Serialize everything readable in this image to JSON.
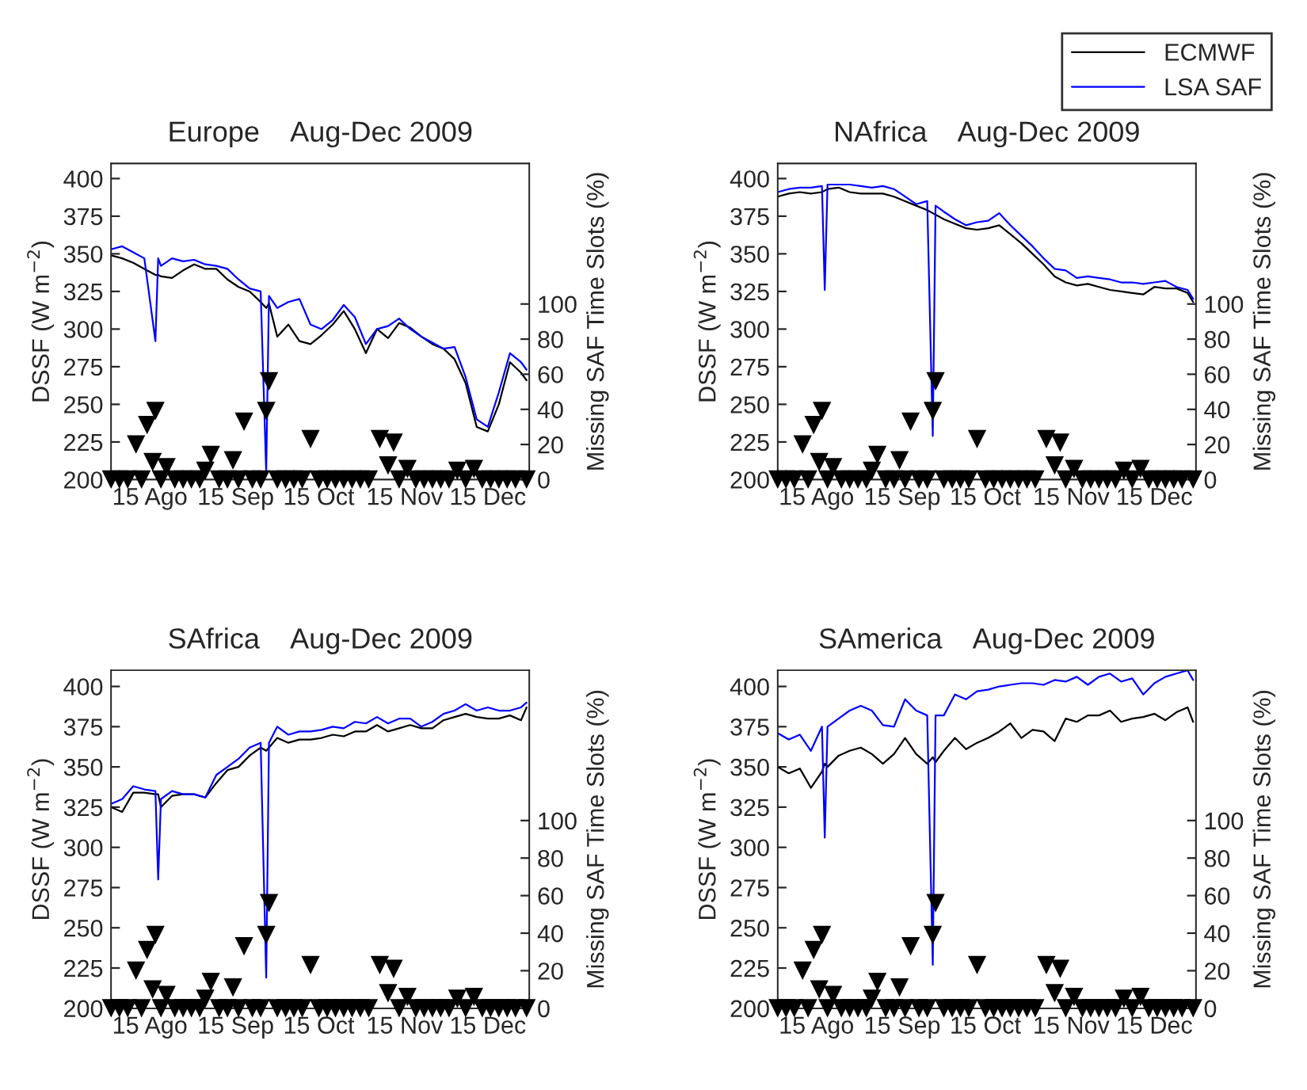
{
  "chart_data": [
    {
      "type": "line",
      "title": "Europe    Aug-Dec 2009",
      "ylabel": "DSSF (W m$^{−2}$)",
      "y2label": "Missing SAF Time Slots (%)",
      "grid": false,
      "xlim": [
        "2009-08-01",
        "2009-12-30"
      ],
      "xticks": [
        {
          "value": "2009-08-15",
          "label": "15 Ago"
        },
        {
          "value": "2009-09-15",
          "label": "15 Sep"
        },
        {
          "value": "2009-10-15",
          "label": "15 Oct"
        },
        {
          "value": "2009-11-15",
          "label": "15 Nov"
        },
        {
          "value": "2009-12-15",
          "label": "15 Dec"
        }
      ],
      "ylim": [
        200,
        410
      ],
      "yticks": [
        200,
        225,
        250,
        275,
        300,
        325,
        350,
        375,
        400
      ],
      "y2lim": [
        0,
        180
      ],
      "y2ticks": [
        0,
        20,
        40,
        60,
        80,
        100
      ],
      "x": [
        "2009-08-01",
        "2009-08-05",
        "2009-08-09",
        "2009-08-13",
        "2009-08-17",
        "2009-08-18",
        "2009-08-19",
        "2009-08-23",
        "2009-08-27",
        "2009-08-31",
        "2009-09-04",
        "2009-09-08",
        "2009-09-12",
        "2009-09-16",
        "2009-09-20",
        "2009-09-24",
        "2009-09-26",
        "2009-09-27",
        "2009-09-30",
        "2009-10-04",
        "2009-10-08",
        "2009-10-12",
        "2009-10-16",
        "2009-10-20",
        "2009-10-24",
        "2009-10-28",
        "2009-11-01",
        "2009-11-05",
        "2009-11-09",
        "2009-11-13",
        "2009-11-17",
        "2009-11-21",
        "2009-11-25",
        "2009-11-29",
        "2009-12-03",
        "2009-12-07",
        "2009-12-11",
        "2009-12-15",
        "2009-12-19",
        "2009-12-23",
        "2009-12-27",
        "2009-12-29"
      ],
      "series": [
        {
          "color": "#000000",
          "values": [
            349,
            347,
            344,
            340,
            336,
            336,
            335,
            334,
            339,
            343,
            340,
            340,
            333,
            328,
            325,
            318,
            314,
            317,
            295,
            303,
            292,
            290,
            296,
            303,
            312,
            300,
            284,
            300,
            294,
            304,
            301,
            295,
            290,
            287,
            280,
            264,
            235,
            232,
            250,
            278,
            271,
            266
          ]
        },
        {
          "color": "#0000ff",
          "values": [
            353,
            355,
            351,
            347,
            292,
            347,
            342,
            347,
            345,
            346,
            343,
            342,
            340,
            333,
            327,
            325,
            205,
            322,
            314,
            318,
            320,
            303,
            300,
            306,
            316,
            308,
            290,
            300,
            302,
            307,
            300,
            295,
            291,
            287,
            288,
            268,
            240,
            235,
            258,
            284,
            278,
            273
          ]
        },
        {
          "type": "scatter",
          "axis": "y2",
          "color": "#000000",
          "marker": "triangle",
          "x": [
            "2009-08-01",
            "2009-08-04",
            "2009-08-07",
            "2009-08-10",
            "2009-08-12",
            "2009-08-14",
            "2009-08-16",
            "2009-08-17",
            "2009-08-19",
            "2009-08-21",
            "2009-08-24",
            "2009-08-27",
            "2009-08-30",
            "2009-09-02",
            "2009-09-04",
            "2009-09-06",
            "2009-09-09",
            "2009-09-12",
            "2009-09-14",
            "2009-09-16",
            "2009-09-18",
            "2009-09-21",
            "2009-09-24",
            "2009-09-26",
            "2009-09-27",
            "2009-09-30",
            "2009-10-03",
            "2009-10-06",
            "2009-10-09",
            "2009-10-12",
            "2009-10-15",
            "2009-10-18",
            "2009-10-21",
            "2009-10-24",
            "2009-10-27",
            "2009-10-30",
            "2009-11-02",
            "2009-11-06",
            "2009-11-09",
            "2009-11-11",
            "2009-11-13",
            "2009-11-16",
            "2009-11-19",
            "2009-11-22",
            "2009-11-25",
            "2009-11-28",
            "2009-12-01",
            "2009-12-04",
            "2009-12-07",
            "2009-12-10",
            "2009-12-13",
            "2009-12-16",
            "2009-12-19",
            "2009-12-22",
            "2009-12-25",
            "2009-12-29"
          ],
          "values": [
            0,
            0,
            0,
            20,
            0,
            31,
            10,
            39,
            0,
            7,
            0,
            0,
            0,
            0,
            5,
            14,
            0,
            0,
            11,
            0,
            33,
            0,
            0,
            39,
            56,
            0,
            0,
            0,
            0,
            23,
            0,
            0,
            0,
            0,
            0,
            0,
            0,
            23,
            8,
            21,
            0,
            6,
            0,
            0,
            0,
            0,
            0,
            5,
            0,
            6,
            0,
            0,
            0,
            0,
            0,
            0
          ]
        }
      ]
    },
    {
      "type": "line",
      "title": "NAfrica    Aug-Dec 2009",
      "ylabel": "DSSF (W m$^{−2}$)",
      "y2label": "Missing SAF Time Slots (%)",
      "grid": false,
      "legend": "top right",
      "xlim": [
        "2009-08-01",
        "2009-12-30"
      ],
      "xticks": [
        {
          "value": "2009-08-15",
          "label": "15 Ago"
        },
        {
          "value": "2009-09-15",
          "label": "15 Sep"
        },
        {
          "value": "2009-10-15",
          "label": "15 Oct"
        },
        {
          "value": "2009-11-15",
          "label": "15 Nov"
        },
        {
          "value": "2009-12-15",
          "label": "15 Dec"
        }
      ],
      "ylim": [
        200,
        410
      ],
      "yticks": [
        200,
        225,
        250,
        275,
        300,
        325,
        350,
        375,
        400
      ],
      "y2lim": [
        0,
        180
      ],
      "y2ticks": [
        0,
        20,
        40,
        60,
        80,
        100
      ],
      "x": [
        "2009-08-01",
        "2009-08-05",
        "2009-08-09",
        "2009-08-13",
        "2009-08-17",
        "2009-08-18",
        "2009-08-19",
        "2009-08-23",
        "2009-08-27",
        "2009-08-31",
        "2009-09-04",
        "2009-09-08",
        "2009-09-12",
        "2009-09-16",
        "2009-09-20",
        "2009-09-24",
        "2009-09-26",
        "2009-09-27",
        "2009-09-30",
        "2009-10-04",
        "2009-10-08",
        "2009-10-12",
        "2009-10-16",
        "2009-10-20",
        "2009-10-24",
        "2009-10-28",
        "2009-11-01",
        "2009-11-05",
        "2009-11-09",
        "2009-11-13",
        "2009-11-17",
        "2009-11-21",
        "2009-11-25",
        "2009-11-29",
        "2009-12-03",
        "2009-12-07",
        "2009-12-11",
        "2009-12-15",
        "2009-12-19",
        "2009-12-23",
        "2009-12-27",
        "2009-12-29"
      ],
      "series": [
        {
          "name": "ECMWF",
          "color": "#000000",
          "values": [
            388,
            390,
            391,
            390,
            391,
            392,
            393,
            394,
            391,
            390,
            390,
            390,
            388,
            385,
            382,
            379,
            377,
            376,
            373,
            370,
            367,
            366,
            367,
            369,
            363,
            357,
            350,
            343,
            335,
            331,
            329,
            330,
            328,
            326,
            325,
            324,
            323,
            328,
            327,
            327,
            324,
            318
          ]
        },
        {
          "name": "LSA SAF",
          "color": "#0000ff",
          "values": [
            391,
            393,
            394,
            394,
            395,
            326,
            396,
            396,
            396,
            395,
            394,
            395,
            393,
            388,
            383,
            385,
            229,
            382,
            378,
            373,
            369,
            371,
            372,
            377,
            369,
            362,
            355,
            347,
            340,
            339,
            334,
            335,
            334,
            333,
            331,
            331,
            330,
            331,
            332,
            328,
            326,
            320
          ]
        },
        {
          "type": "scatter",
          "axis": "y2",
          "color": "#000000",
          "marker": "triangle",
          "x": [
            "2009-08-01",
            "2009-08-04",
            "2009-08-07",
            "2009-08-10",
            "2009-08-12",
            "2009-08-14",
            "2009-08-16",
            "2009-08-17",
            "2009-08-19",
            "2009-08-21",
            "2009-08-24",
            "2009-08-27",
            "2009-08-30",
            "2009-09-02",
            "2009-09-04",
            "2009-09-06",
            "2009-09-09",
            "2009-09-12",
            "2009-09-14",
            "2009-09-16",
            "2009-09-18",
            "2009-09-21",
            "2009-09-24",
            "2009-09-26",
            "2009-09-27",
            "2009-09-30",
            "2009-10-03",
            "2009-10-06",
            "2009-10-09",
            "2009-10-12",
            "2009-10-15",
            "2009-10-18",
            "2009-10-21",
            "2009-10-24",
            "2009-10-27",
            "2009-10-30",
            "2009-11-02",
            "2009-11-06",
            "2009-11-09",
            "2009-11-11",
            "2009-11-13",
            "2009-11-16",
            "2009-11-19",
            "2009-11-22",
            "2009-11-25",
            "2009-11-28",
            "2009-12-01",
            "2009-12-04",
            "2009-12-07",
            "2009-12-10",
            "2009-12-13",
            "2009-12-16",
            "2009-12-19",
            "2009-12-22",
            "2009-12-25",
            "2009-12-29"
          ],
          "values": [
            0,
            0,
            0,
            20,
            0,
            31,
            10,
            39,
            0,
            7,
            0,
            0,
            0,
            0,
            5,
            14,
            0,
            0,
            11,
            0,
            33,
            0,
            0,
            39,
            56,
            0,
            0,
            0,
            0,
            23,
            0,
            0,
            0,
            0,
            0,
            0,
            0,
            23,
            8,
            21,
            0,
            6,
            0,
            0,
            0,
            0,
            0,
            5,
            0,
            6,
            0,
            0,
            0,
            0,
            0,
            0
          ]
        }
      ]
    },
    {
      "type": "line",
      "title": "SAfrica    Aug-Dec 2009",
      "ylabel": "DSSF (W m$^{−2}$)",
      "y2label": "Missing SAF Time Slots (%)",
      "grid": false,
      "xlim": [
        "2009-08-01",
        "2009-12-30"
      ],
      "xticks": [
        {
          "value": "2009-08-15",
          "label": "15 Ago"
        },
        {
          "value": "2009-09-15",
          "label": "15 Sep"
        },
        {
          "value": "2009-10-15",
          "label": "15 Oct"
        },
        {
          "value": "2009-11-15",
          "label": "15 Nov"
        },
        {
          "value": "2009-12-15",
          "label": "15 Dec"
        }
      ],
      "ylim": [
        200,
        410
      ],
      "yticks": [
        200,
        225,
        250,
        275,
        300,
        325,
        350,
        375,
        400
      ],
      "y2lim": [
        0,
        180
      ],
      "y2ticks": [
        0,
        20,
        40,
        60,
        80,
        100
      ],
      "x": [
        "2009-08-01",
        "2009-08-05",
        "2009-08-09",
        "2009-08-13",
        "2009-08-17",
        "2009-08-18",
        "2009-08-19",
        "2009-08-23",
        "2009-08-27",
        "2009-08-31",
        "2009-09-04",
        "2009-09-08",
        "2009-09-12",
        "2009-09-16",
        "2009-09-20",
        "2009-09-24",
        "2009-09-26",
        "2009-09-27",
        "2009-09-30",
        "2009-10-04",
        "2009-10-08",
        "2009-10-12",
        "2009-10-16",
        "2009-10-20",
        "2009-10-24",
        "2009-10-28",
        "2009-11-01",
        "2009-11-05",
        "2009-11-09",
        "2009-11-13",
        "2009-11-17",
        "2009-11-21",
        "2009-11-25",
        "2009-11-29",
        "2009-12-03",
        "2009-12-07",
        "2009-12-11",
        "2009-12-15",
        "2009-12-19",
        "2009-12-23",
        "2009-12-27",
        "2009-12-29"
      ],
      "series": [
        {
          "color": "#000000",
          "values": [
            325,
            322,
            334,
            334,
            333,
            333,
            325,
            332,
            333,
            333,
            331,
            340,
            348,
            350,
            357,
            362,
            360,
            362,
            368,
            365,
            367,
            367,
            368,
            370,
            369,
            372,
            372,
            376,
            372,
            374,
            376,
            374,
            374,
            379,
            381,
            383,
            381,
            380,
            380,
            382,
            379,
            387
          ]
        },
        {
          "color": "#0000ff",
          "values": [
            327,
            330,
            338,
            336,
            335,
            280,
            330,
            335,
            333,
            333,
            331,
            345,
            350,
            355,
            362,
            365,
            219,
            365,
            375,
            370,
            372,
            372,
            373,
            375,
            374,
            378,
            377,
            381,
            377,
            380,
            380,
            375,
            378,
            383,
            385,
            389,
            385,
            387,
            385,
            385,
            387,
            390
          ]
        },
        {
          "type": "scatter",
          "axis": "y2",
          "color": "#000000",
          "marker": "triangle",
          "x": [
            "2009-08-01",
            "2009-08-04",
            "2009-08-07",
            "2009-08-10",
            "2009-08-12",
            "2009-08-14",
            "2009-08-16",
            "2009-08-17",
            "2009-08-19",
            "2009-08-21",
            "2009-08-24",
            "2009-08-27",
            "2009-08-30",
            "2009-09-02",
            "2009-09-04",
            "2009-09-06",
            "2009-09-09",
            "2009-09-12",
            "2009-09-14",
            "2009-09-16",
            "2009-09-18",
            "2009-09-21",
            "2009-09-24",
            "2009-09-26",
            "2009-09-27",
            "2009-09-30",
            "2009-10-03",
            "2009-10-06",
            "2009-10-09",
            "2009-10-12",
            "2009-10-15",
            "2009-10-18",
            "2009-10-21",
            "2009-10-24",
            "2009-10-27",
            "2009-10-30",
            "2009-11-02",
            "2009-11-06",
            "2009-11-09",
            "2009-11-11",
            "2009-11-13",
            "2009-11-16",
            "2009-11-19",
            "2009-11-22",
            "2009-11-25",
            "2009-11-28",
            "2009-12-01",
            "2009-12-04",
            "2009-12-07",
            "2009-12-10",
            "2009-12-13",
            "2009-12-16",
            "2009-12-19",
            "2009-12-22",
            "2009-12-25",
            "2009-12-29"
          ],
          "values": [
            0,
            0,
            0,
            20,
            0,
            31,
            10,
            39,
            0,
            7,
            0,
            0,
            0,
            0,
            5,
            14,
            0,
            0,
            11,
            0,
            33,
            0,
            0,
            39,
            56,
            0,
            0,
            0,
            0,
            23,
            0,
            0,
            0,
            0,
            0,
            0,
            0,
            23,
            8,
            21,
            0,
            6,
            0,
            0,
            0,
            0,
            0,
            5,
            0,
            6,
            0,
            0,
            0,
            0,
            0,
            0
          ]
        }
      ]
    },
    {
      "type": "line",
      "title": "SAmerica    Aug-Dec 2009",
      "ylabel": "DSSF (W m$^{−2}$)",
      "y2label": "Missing SAF Time Slots (%)",
      "grid": false,
      "xlim": [
        "2009-08-01",
        "2009-12-30"
      ],
      "xticks": [
        {
          "value": "2009-08-15",
          "label": "15 Ago"
        },
        {
          "value": "2009-09-15",
          "label": "15 Sep"
        },
        {
          "value": "2009-10-15",
          "label": "15 Oct"
        },
        {
          "value": "2009-11-15",
          "label": "15 Nov"
        },
        {
          "value": "2009-12-15",
          "label": "15 Dec"
        }
      ],
      "ylim": [
        200,
        410
      ],
      "yticks": [
        200,
        225,
        250,
        275,
        300,
        325,
        350,
        375,
        400
      ],
      "y2lim": [
        0,
        180
      ],
      "y2ticks": [
        0,
        20,
        40,
        60,
        80,
        100
      ],
      "x": [
        "2009-08-01",
        "2009-08-05",
        "2009-08-09",
        "2009-08-13",
        "2009-08-17",
        "2009-08-18",
        "2009-08-19",
        "2009-08-23",
        "2009-08-27",
        "2009-08-31",
        "2009-09-04",
        "2009-09-08",
        "2009-09-12",
        "2009-09-16",
        "2009-09-20",
        "2009-09-24",
        "2009-09-26",
        "2009-09-27",
        "2009-09-30",
        "2009-10-04",
        "2009-10-08",
        "2009-10-12",
        "2009-10-16",
        "2009-10-20",
        "2009-10-24",
        "2009-10-28",
        "2009-11-01",
        "2009-11-05",
        "2009-11-09",
        "2009-11-13",
        "2009-11-17",
        "2009-11-21",
        "2009-11-25",
        "2009-11-29",
        "2009-12-03",
        "2009-12-07",
        "2009-12-11",
        "2009-12-15",
        "2009-12-19",
        "2009-12-23",
        "2009-12-27",
        "2009-12-29"
      ],
      "series": [
        {
          "color": "#000000",
          "values": [
            350,
            346,
            349,
            337,
            347,
            352,
            350,
            357,
            360,
            362,
            358,
            352,
            358,
            368,
            358,
            352,
            356,
            353,
            360,
            368,
            361,
            365,
            368,
            372,
            377,
            368,
            373,
            372,
            366,
            380,
            378,
            382,
            382,
            385,
            378,
            380,
            381,
            383,
            379,
            384,
            387,
            378
          ]
        },
        {
          "color": "#0000ff",
          "values": [
            371,
            367,
            370,
            360,
            375,
            306,
            375,
            380,
            385,
            388,
            385,
            376,
            375,
            392,
            385,
            382,
            227,
            382,
            382,
            395,
            392,
            397,
            398,
            400,
            401,
            402,
            402,
            401,
            404,
            403,
            406,
            401,
            406,
            408,
            403,
            405,
            395,
            402,
            406,
            408,
            410,
            404
          ]
        },
        {
          "type": "scatter",
          "axis": "y2",
          "color": "#000000",
          "marker": "triangle",
          "x": [
            "2009-08-01",
            "2009-08-04",
            "2009-08-07",
            "2009-08-10",
            "2009-08-12",
            "2009-08-14",
            "2009-08-16",
            "2009-08-17",
            "2009-08-19",
            "2009-08-21",
            "2009-08-24",
            "2009-08-27",
            "2009-08-30",
            "2009-09-02",
            "2009-09-04",
            "2009-09-06",
            "2009-09-09",
            "2009-09-12",
            "2009-09-14",
            "2009-09-16",
            "2009-09-18",
            "2009-09-21",
            "2009-09-24",
            "2009-09-26",
            "2009-09-27",
            "2009-09-30",
            "2009-10-03",
            "2009-10-06",
            "2009-10-09",
            "2009-10-12",
            "2009-10-15",
            "2009-10-18",
            "2009-10-21",
            "2009-10-24",
            "2009-10-27",
            "2009-10-30",
            "2009-11-02",
            "2009-11-06",
            "2009-11-09",
            "2009-11-11",
            "2009-11-13",
            "2009-11-16",
            "2009-11-19",
            "2009-11-22",
            "2009-11-25",
            "2009-11-28",
            "2009-12-01",
            "2009-12-04",
            "2009-12-07",
            "2009-12-10",
            "2009-12-13",
            "2009-12-16",
            "2009-12-19",
            "2009-12-22",
            "2009-12-25",
            "2009-12-29"
          ],
          "values": [
            0,
            0,
            0,
            20,
            0,
            31,
            10,
            39,
            0,
            7,
            0,
            0,
            0,
            0,
            5,
            14,
            0,
            0,
            11,
            0,
            33,
            0,
            0,
            39,
            56,
            0,
            0,
            0,
            0,
            23,
            0,
            0,
            0,
            0,
            0,
            0,
            0,
            23,
            8,
            21,
            0,
            6,
            0,
            0,
            0,
            0,
            0,
            5,
            0,
            6,
            0,
            0,
            0,
            0,
            0,
            0
          ]
        }
      ]
    }
  ]
}
